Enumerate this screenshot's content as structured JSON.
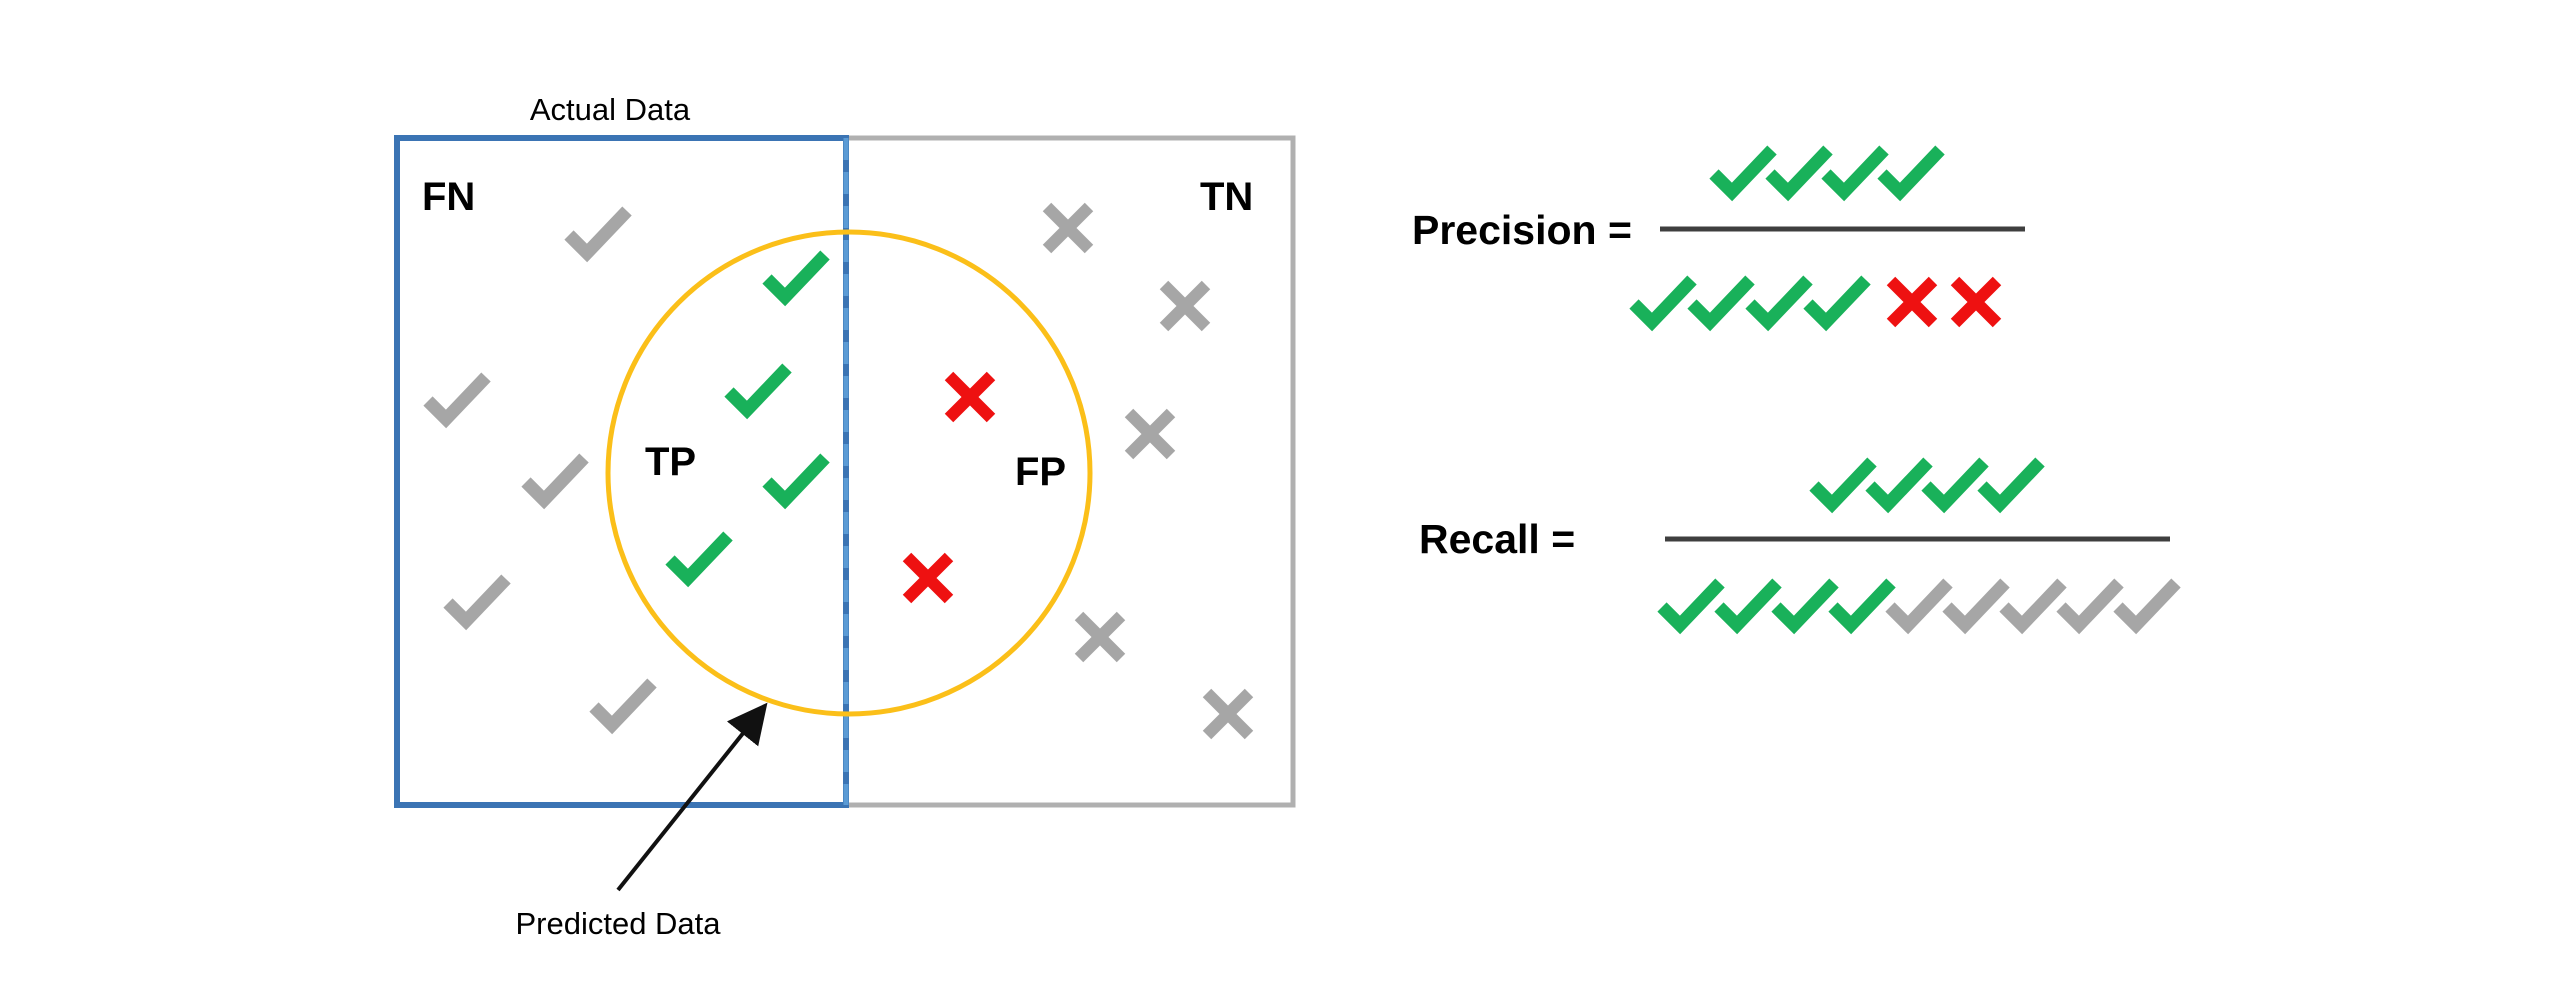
{
  "diagram": {
    "actual_data_label": "Actual Data",
    "predicted_data_label": "Predicted Data",
    "regions": {
      "fn": "FN",
      "tn": "TN",
      "tp": "TP",
      "fp": "FP"
    },
    "marks_on_diagram": {
      "false_negatives": {
        "symbol": "check-icon",
        "count": 5
      },
      "true_positives": {
        "symbol": "check-icon",
        "count": 4
      },
      "false_positives": {
        "symbol": "cross-icon",
        "count": 2
      },
      "true_negatives": {
        "symbol": "cross-icon",
        "count": 5
      }
    }
  },
  "formulas": {
    "precision": {
      "label": "Precision =",
      "numerator": [
        "tp",
        "tp",
        "tp",
        "tp"
      ],
      "denominator": [
        "tp",
        "tp",
        "tp",
        "tp",
        "fp",
        "fp"
      ]
    },
    "recall": {
      "label": "Recall =",
      "numerator": [
        "tp",
        "tp",
        "tp",
        "tp"
      ],
      "denominator": [
        "tp",
        "tp",
        "tp",
        "tp",
        "fn",
        "fn",
        "fn",
        "fn",
        "fn"
      ]
    }
  },
  "colors": {
    "actual_box": "#3b74b4",
    "dashed_divider": "#5b9bd5",
    "outer_box": "#b0b0b0",
    "predicted_circle": "#fbbf19",
    "true_positive": "#19b15a",
    "false_positive": "#ee1111",
    "neutral": "#a6a6a6",
    "fraction_bar": "#3f3f3f",
    "arrow": "#111111"
  }
}
